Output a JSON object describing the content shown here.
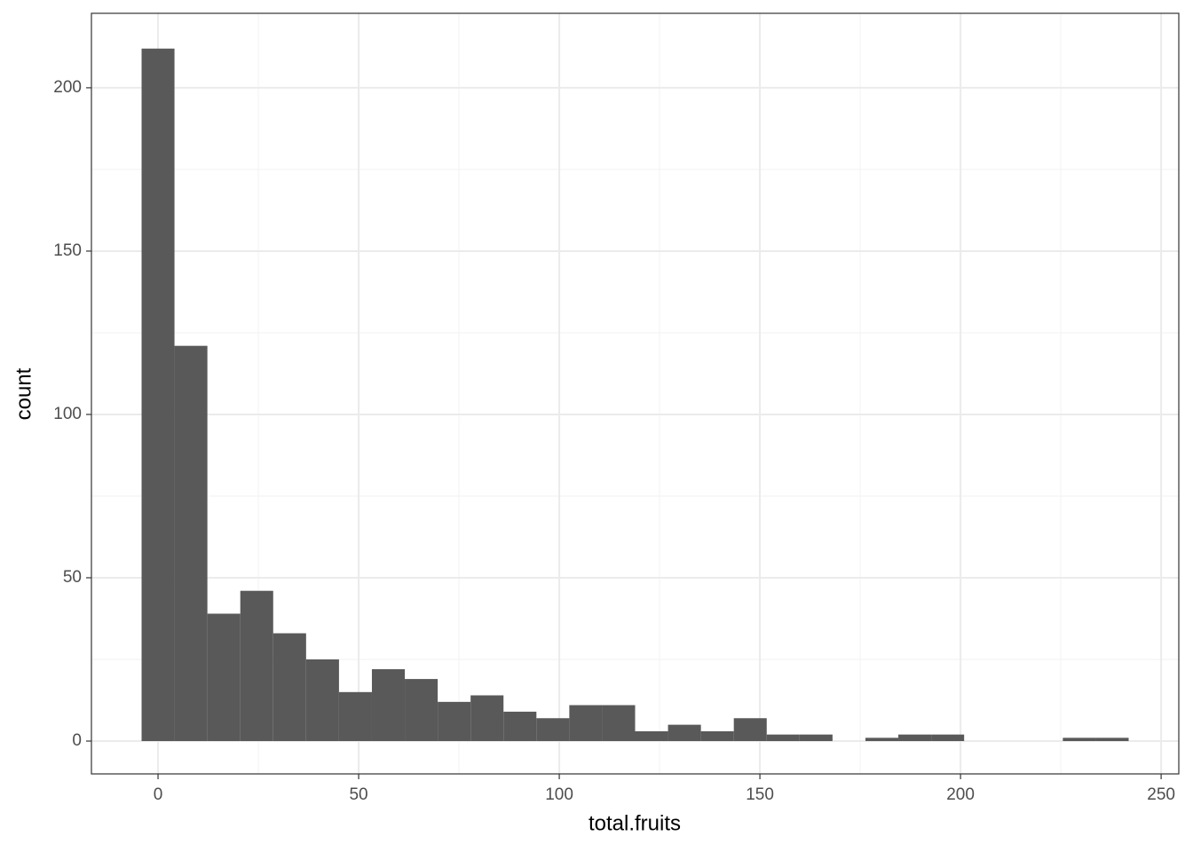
{
  "chart_data": {
    "type": "histogram",
    "x_label": "total.fruits",
    "y_label": "count",
    "bins": [
      -4.1,
      4.1,
      12.3,
      20.5,
      28.7,
      36.9,
      45.1,
      53.3,
      61.5,
      69.7,
      77.9,
      86.1,
      94.3,
      102.5,
      110.7,
      118.9,
      127.1,
      135.3,
      143.5,
      151.7,
      159.9,
      168.1,
      176.3,
      184.5,
      192.7,
      200.9,
      209.1,
      217.3,
      225.5,
      233.7,
      241.9
    ],
    "counts": [
      212,
      121,
      39,
      46,
      33,
      25,
      15,
      22,
      19,
      12,
      14,
      9,
      7,
      11,
      11,
      3,
      5,
      3,
      7,
      2,
      2,
      0,
      1,
      2,
      2,
      0,
      0,
      0,
      1,
      1
    ],
    "color": "#595959",
    "xlim": [
      -16.6,
      254.4
    ],
    "ylim": [
      -10.05,
      222.8
    ],
    "xticks": [
      0,
      50,
      100,
      150,
      200,
      250
    ],
    "yticks": [
      0,
      50,
      100,
      150,
      200
    ],
    "grid": true
  }
}
